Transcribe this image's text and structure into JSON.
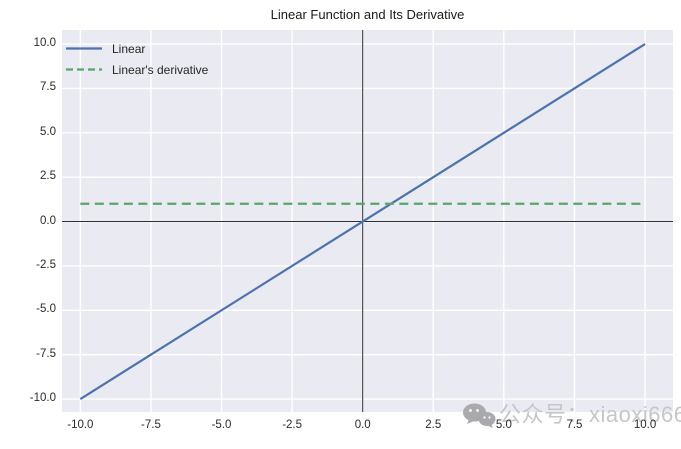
{
  "page": {
    "watermark": {
      "icon": "wechat-icon",
      "text": "公众号：xiaoxi666"
    }
  },
  "chart_data": {
    "type": "line",
    "title": "Linear Function and Its Derivative",
    "xlabel": "",
    "ylabel": "",
    "xlim": [
      -10.65,
      10.99
    ],
    "ylim": [
      -10.73,
      10.79
    ],
    "x_ticks": [
      -10.0,
      -7.5,
      -5.0,
      -2.5,
      0.0,
      2.5,
      5.0,
      7.5,
      10.0
    ],
    "y_ticks": [
      -10.0,
      -7.5,
      -5.0,
      -2.5,
      0.0,
      2.5,
      5.0,
      7.5,
      10.0
    ],
    "x_tick_labels": [
      "-10.0",
      "-7.5",
      "-5.0",
      "-2.5",
      "0.0",
      "2.5",
      "5.0",
      "7.5",
      "10.0"
    ],
    "y_tick_labels": [
      "-10.0",
      "-7.5",
      "-5.0",
      "-2.5",
      "0.0",
      "2.5",
      "5.0",
      "7.5",
      "10.0"
    ],
    "grid": true,
    "plot_background": "#eaeaf2",
    "grid_color": "#ffffff",
    "legend": {
      "position": "upper left",
      "frame": false,
      "entries": [
        {
          "label": "Linear",
          "color": "#4c72b0",
          "linestyle": "solid"
        },
        {
          "label": "Linear's derivative",
          "color": "#55a868",
          "linestyle": "dashed"
        }
      ]
    },
    "series": [
      {
        "name": "Linear",
        "color": "#4c72b0",
        "linestyle": "solid",
        "x": [
          -10,
          10
        ],
        "y": [
          -10,
          10
        ]
      },
      {
        "name": "Linear's derivative",
        "color": "#55a868",
        "linestyle": "dashed",
        "x": [
          -10,
          10
        ],
        "y": [
          1,
          1
        ]
      }
    ],
    "reference_lines": [
      {
        "type": "axhline",
        "value": 0,
        "color": "#2f2f2f"
      },
      {
        "type": "axvline",
        "value": 0,
        "color": "#2f2f2f"
      }
    ]
  }
}
